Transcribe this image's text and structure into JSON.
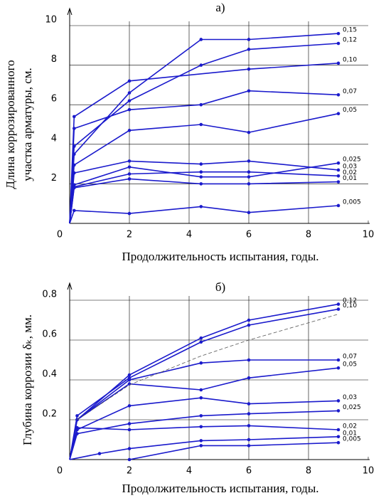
{
  "chart_data": [
    {
      "type": "line",
      "title": "а)",
      "ylabel": [
        "Длина коррозированного",
        "участка арматуры, см."
      ],
      "xlabel": "Продолжительность испытания, годы.",
      "xlim": [
        0,
        10
      ],
      "ylim": [
        0,
        10
      ],
      "xticks": [
        0,
        2,
        4,
        6,
        8,
        10
      ],
      "yticks": [
        2,
        4,
        6,
        8,
        10
      ],
      "grid": true,
      "series": [
        {
          "name": "0,15",
          "color": "#1a1acc",
          "x": [
            0,
            0.15,
            2,
            4.4,
            6,
            9
          ],
          "values": [
            0,
            3.5,
            6.6,
            9.3,
            9.3,
            9.6
          ]
        },
        {
          "name": "0,12",
          "color": "#1a1acc",
          "x": [
            0,
            0.15,
            2,
            4.4,
            6,
            9
          ],
          "values": [
            0,
            3.9,
            6.2,
            8.0,
            8.8,
            9.1
          ]
        },
        {
          "name": "0,10",
          "color": "#1a1acc",
          "x": [
            0,
            0.15,
            2,
            6,
            9
          ],
          "values": [
            0,
            5.4,
            7.2,
            7.8,
            8.1
          ]
        },
        {
          "name": "0,07",
          "color": "#1a1acc",
          "x": [
            0,
            0.15,
            2,
            4.4,
            6,
            9
          ],
          "values": [
            0,
            4.8,
            5.75,
            6.0,
            6.7,
            6.5
          ]
        },
        {
          "name": "0,05",
          "color": "#1a1acc",
          "x": [
            0,
            0.15,
            2,
            4.4,
            6,
            9
          ],
          "values": [
            0,
            2.95,
            4.7,
            5.0,
            4.6,
            5.55
          ]
        },
        {
          "name": "0,03",
          "color": "#1a1acc",
          "x": [
            0,
            0.15,
            2,
            4.4,
            6,
            9
          ],
          "values": [
            0,
            2.55,
            3.15,
            3.0,
            3.15,
            2.7
          ]
        },
        {
          "name": "0,025",
          "color": "#1a1acc",
          "x": [
            0,
            0.15,
            2,
            4.4,
            6,
            9
          ],
          "values": [
            0,
            1.95,
            2.85,
            2.35,
            2.35,
            3.05
          ]
        },
        {
          "name": "0,02",
          "color": "#1a1acc",
          "x": [
            0,
            0.15,
            2,
            4.4,
            6,
            9
          ],
          "values": [
            0,
            1.85,
            2.5,
            2.6,
            2.6,
            2.4
          ]
        },
        {
          "name": "0,01",
          "color": "#1a1acc",
          "x": [
            0,
            0.15,
            2,
            4.4,
            6,
            9
          ],
          "values": [
            0,
            1.8,
            2.25,
            2.0,
            2.0,
            2.1
          ]
        },
        {
          "name": "0,005",
          "color": "#1a1acc",
          "x": [
            0,
            0.15,
            2,
            4.4,
            6,
            9
          ],
          "values": [
            0,
            0.65,
            0.5,
            0.85,
            0.55,
            0.9
          ]
        }
      ]
    },
    {
      "type": "line",
      "title": "б)",
      "ylabel": [
        "Глубина коррозии δₖ, мм."
      ],
      "xlabel": "Продолжительность испытания, годы.",
      "xlim": [
        0,
        10
      ],
      "ylim": [
        0,
        0.8
      ],
      "xticks": [
        0,
        2,
        4,
        6,
        8,
        10
      ],
      "yticks": [
        0.2,
        0.4,
        0.6,
        0.8
      ],
      "grid": true,
      "series": [
        {
          "name": "0,12",
          "color": "#1a1acc",
          "x": [
            0,
            0.25,
            2,
            4.4,
            6,
            9
          ],
          "values": [
            0,
            0.2,
            0.425,
            0.61,
            0.7,
            0.78
          ]
        },
        {
          "name": "0,10",
          "color": "#1a1acc",
          "x": [
            0,
            0.25,
            2,
            4.4,
            6,
            9
          ],
          "values": [
            0,
            0.22,
            0.41,
            0.59,
            0.675,
            0.755
          ]
        },
        {
          "name": "0,07",
          "color": "#1a1acc",
          "x": [
            0,
            0.25,
            2,
            4.4,
            6,
            9
          ],
          "values": [
            0,
            0.2,
            0.4,
            0.485,
            0.5,
            0.5
          ]
        },
        {
          "name": "0,05",
          "color": "#1a1acc",
          "x": [
            0,
            0.25,
            2,
            4.4,
            6,
            9
          ],
          "values": [
            0,
            0.2,
            0.38,
            0.35,
            0.41,
            0.46
          ]
        },
        {
          "name": "0,03",
          "color": "#1a1acc",
          "x": [
            0,
            0.25,
            2,
            4.4,
            6,
            9
          ],
          "values": [
            0,
            0.15,
            0.27,
            0.31,
            0.28,
            0.295
          ]
        },
        {
          "name": "0,025",
          "color": "#1a1acc",
          "x": [
            0,
            0.25,
            2,
            4.4,
            6,
            9
          ],
          "values": [
            0,
            0.13,
            0.18,
            0.22,
            0.23,
            0.245
          ]
        },
        {
          "name": "0,02",
          "color": "#1a1acc",
          "x": [
            0,
            0.25,
            2,
            4.4,
            6,
            9
          ],
          "values": [
            0,
            0.16,
            0.15,
            0.165,
            0.17,
            0.15
          ]
        },
        {
          "name": "0,01",
          "color": "#1a1acc",
          "x": [
            0,
            1,
            2,
            4.4,
            6,
            9
          ],
          "values": [
            0,
            0.03,
            0.055,
            0.095,
            0.1,
            0.115
          ]
        },
        {
          "name": "0,005",
          "color": "#1a1acc",
          "x": [
            2,
            4.4,
            6,
            9
          ],
          "values": [
            0,
            0.07,
            0.07,
            0.085
          ]
        },
        {
          "color": "#555555",
          "style": "dashed",
          "x": [
            0.25,
            2,
            4.4,
            6,
            9
          ],
          "values": [
            0.2,
            0.375,
            0.52,
            0.6,
            0.73
          ]
        }
      ]
    }
  ]
}
